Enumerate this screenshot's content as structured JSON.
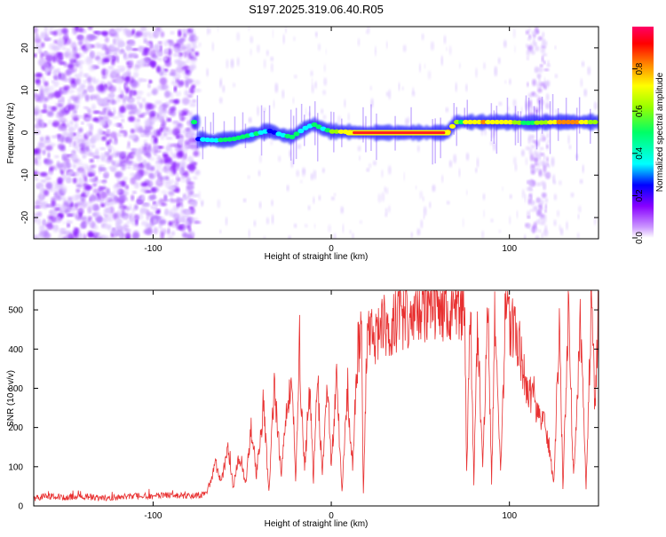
{
  "title": "S197.2025.319.06.40.R05",
  "chart_data": [
    {
      "type": "heatmap",
      "xlabel": "Height of straight line (km)",
      "ylabel": "Frequency (Hz)",
      "xlim": [
        -167,
        150
      ],
      "ylim": [
        -25,
        25
      ],
      "xticks": [
        "-100",
        "0",
        "100"
      ],
      "xtick_values": [
        -100,
        0,
        100
      ],
      "yticks": [
        "-20",
        "-10",
        "0",
        "10",
        "20"
      ],
      "ytick_values": [
        -20,
        -10,
        0,
        10,
        20
      ],
      "colorbar": {
        "label": "Normalized spectral amplitude",
        "ticks": [
          "0.0",
          "0.2",
          "0.4",
          "0.6",
          "0.8"
        ],
        "tick_values": [
          0.0,
          0.2,
          0.4,
          0.6,
          0.8
        ],
        "colors": [
          "#ffffff",
          "#cc99ff",
          "#8800ff",
          "#0000ff",
          "#00ffff",
          "#00ff66",
          "#99ff00",
          "#ffff00",
          "#ff8800",
          "#ff0000",
          "#ff0066"
        ]
      },
      "signal_track": [
        {
          "x": -75,
          "freq": -1.5,
          "amp": 0.35
        },
        {
          "x": -65,
          "freq": -1.8,
          "amp": 0.45
        },
        {
          "x": -55,
          "freq": -1.5,
          "amp": 0.55
        },
        {
          "x": -45,
          "freq": -0.5,
          "amp": 0.5
        },
        {
          "x": -35,
          "freq": 0.5,
          "amp": 0.35
        },
        {
          "x": -28,
          "freq": -0.5,
          "amp": 0.4
        },
        {
          "x": -22,
          "freq": -1.0,
          "amp": 0.55
        },
        {
          "x": -15,
          "freq": 1.0,
          "amp": 0.4
        },
        {
          "x": -10,
          "freq": 2.0,
          "amp": 0.5
        },
        {
          "x": -5,
          "freq": 1.0,
          "amp": 0.5
        },
        {
          "x": 0,
          "freq": 0.3,
          "amp": 0.6
        },
        {
          "x": 10,
          "freq": 0.2,
          "amp": 0.8
        },
        {
          "x": 20,
          "freq": 0.0,
          "amp": 0.95
        },
        {
          "x": 40,
          "freq": 0.0,
          "amp": 0.97
        },
        {
          "x": 65,
          "freq": 0.0,
          "amp": 0.95
        },
        {
          "x": 70,
          "freq": 2.5,
          "amp": 0.6
        },
        {
          "x": 85,
          "freq": 2.5,
          "amp": 0.8
        },
        {
          "x": 100,
          "freq": 2.5,
          "amp": 0.7
        },
        {
          "x": 110,
          "freq": 2.3,
          "amp": 0.55
        },
        {
          "x": 125,
          "freq": 2.5,
          "amp": 0.75
        },
        {
          "x": 140,
          "freq": 2.5,
          "amp": 0.8
        },
        {
          "x": 150,
          "freq": 2.5,
          "amp": 0.6
        }
      ]
    },
    {
      "type": "line",
      "xlabel": "Height of straight line (km)",
      "ylabel": "SNR (10 * v/v)",
      "xlim": [
        -167,
        150
      ],
      "ylim": [
        0,
        550
      ],
      "xticks": [
        "-100",
        "0",
        "100"
      ],
      "xtick_values": [
        -100,
        0,
        100
      ],
      "yticks": [
        "0",
        "100",
        "200",
        "300",
        "400",
        "500"
      ],
      "ytick_values": [
        0,
        100,
        200,
        300,
        400,
        500
      ],
      "color": "#e83030",
      "series": [
        {
          "x": [
            -167,
            -160,
            -150,
            -140,
            -130,
            -120,
            -110,
            -100,
            -90,
            -80,
            -70,
            -65,
            -62,
            -58,
            -55,
            -52,
            -48,
            -45,
            -42,
            -38,
            -35,
            -32,
            -28,
            -25,
            -22,
            -20,
            -18,
            -15,
            -12,
            -10,
            -8,
            -5,
            -2,
            0,
            3,
            6,
            9,
            12,
            15,
            17,
            18,
            20,
            25,
            30,
            40,
            50,
            60,
            65,
            70,
            75,
            76,
            78,
            80,
            82,
            85,
            88,
            90,
            92,
            95,
            98,
            100,
            105,
            110,
            112,
            115,
            120,
            125,
            128,
            130,
            133,
            136,
            140,
            143,
            146,
            148,
            150
          ],
          "y": [
            20,
            25,
            22,
            25,
            20,
            22,
            25,
            25,
            28,
            25,
            30,
            110,
            60,
            140,
            50,
            120,
            60,
            200,
            80,
            250,
            40,
            300,
            80,
            240,
            330,
            60,
            380,
            100,
            290,
            60,
            350,
            80,
            300,
            100,
            320,
            40,
            280,
            90,
            400,
            420,
            30,
            420,
            440,
            460,
            480,
            500,
            505,
            510,
            500,
            490,
            80,
            500,
            60,
            480,
            90,
            500,
            60,
            480,
            80,
            490,
            470,
            420,
            300,
            280,
            250,
            200,
            60,
            480,
            40,
            500,
            70,
            480,
            40,
            530,
            250,
            480
          ]
        }
      ]
    }
  ]
}
